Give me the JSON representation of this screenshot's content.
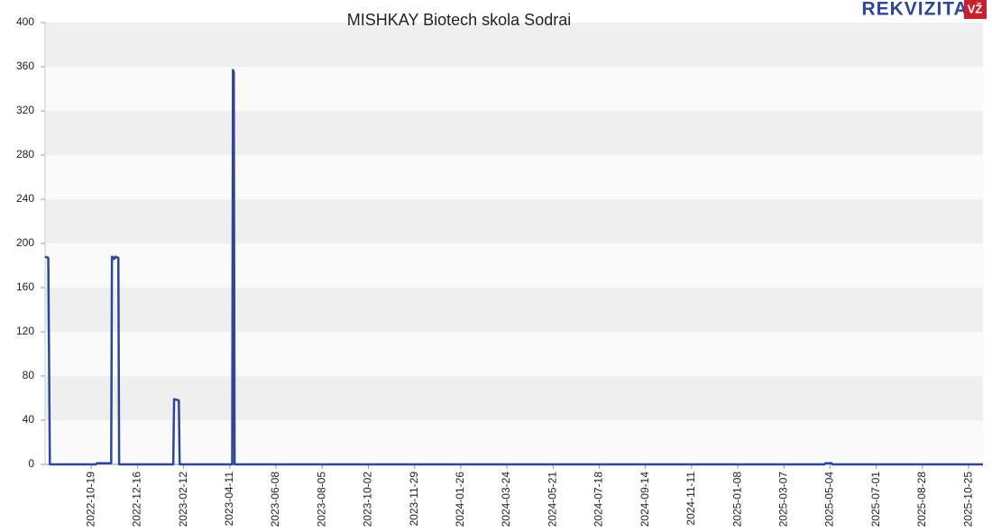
{
  "chart_data": {
    "type": "line",
    "title": "MISHKAY Biotech skola Sodrai",
    "logo": {
      "text": "REKVIZITAI",
      "badge": "VŽ"
    },
    "x": [
      "2022-08-22",
      "2022-08-26",
      "2022-08-28",
      "2022-10-25",
      "2022-10-26",
      "2022-11-13",
      "2022-11-14",
      "2022-11-17",
      "2022-11-18",
      "2022-11-22",
      "2022-11-23",
      "2023-01-30",
      "2023-01-31",
      "2023-02-06",
      "2023-02-07",
      "2023-04-14",
      "2023-04-15",
      "2023-04-16",
      "2023-04-17",
      "2025-04-27",
      "2025-04-28",
      "2025-05-06",
      "2025-05-07",
      "2025-11-12"
    ],
    "series": [
      {
        "color": "#2f4597",
        "values": [
          188,
          187,
          0,
          0,
          1,
          1,
          188,
          186,
          188,
          187,
          0,
          0,
          59,
          58,
          0,
          0,
          357,
          355,
          0,
          0,
          1,
          1,
          0,
          0
        ]
      }
    ],
    "xlim": [
      "2022-08-22",
      "2025-11-12"
    ],
    "xticks": [
      "2022-10-19",
      "2022-12-16",
      "2023-02-12",
      "2023-04-11",
      "2023-06-08",
      "2023-08-05",
      "2023-10-02",
      "2023-11-29",
      "2024-01-26",
      "2024-03-24",
      "2024-05-21",
      "2024-07-18",
      "2024-09-14",
      "2024-11-11",
      "2025-01-08",
      "2025-03-07",
      "2025-05-04",
      "2025-07-01",
      "2025-08-28",
      "2025-10-25"
    ],
    "ylim": [
      0,
      400
    ],
    "yticks": [
      0,
      40,
      80,
      120,
      160,
      200,
      240,
      280,
      320,
      360,
      400
    ],
    "grid": "bands"
  }
}
